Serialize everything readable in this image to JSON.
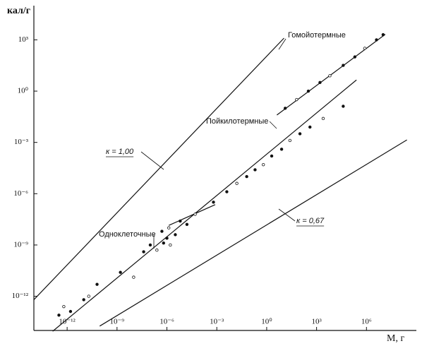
{
  "chart_data": {
    "type": "scatter",
    "y_label": "кал/г",
    "x_label": "М, г",
    "log_x": true,
    "log_y": true,
    "color": "#111111",
    "xlim": [
      1e-14,
      1000000000.0
    ],
    "ylim": [
      1e-14,
      100000.0
    ],
    "xticks": [
      {
        "value": 1e-12,
        "label": "10⁻¹²"
      },
      {
        "value": 1e-09,
        "label": "10⁻⁹"
      },
      {
        "value": 1e-06,
        "label": "10⁻⁶"
      },
      {
        "value": 0.001,
        "label": "10⁻³"
      },
      {
        "value": 1,
        "label": "10⁰"
      },
      {
        "value": 1000.0,
        "label": "10³"
      },
      {
        "value": 1000000.0,
        "label": "10⁶"
      }
    ],
    "yticks": [
      {
        "value": 1000.0,
        "label": "10³"
      },
      {
        "value": 1,
        "label": "10⁰"
      },
      {
        "value": 0.001,
        "label": "10⁻³"
      },
      {
        "value": 1e-06,
        "label": "10⁻⁶"
      },
      {
        "value": 1e-09,
        "label": "10⁻⁹"
      },
      {
        "value": 1e-12,
        "label": "10⁻¹²"
      }
    ],
    "lines": [
      {
        "label": "к = 1,00",
        "x": [
          1e-14,
          11
        ],
        "y": [
          6.3e-13,
          1260
        ]
      },
      {
        "label": "к = 0,67",
        "x": [
          9.1e-11,
          270000000.0
        ],
        "y": [
          1.8e-14,
          0.0014
        ]
      },
      {
        "label": "Пойкилотермные",
        "x": [
          1.35e-13,
          250000.0
        ],
        "y": [
          9e-15,
          4.5
        ]
      },
      {
        "label": "Одноклеточные",
        "x": [
          1.3e-06,
          0.0008
        ],
        "y": [
          1.4e-08,
          2.3e-07
        ]
      },
      {
        "label": "Гомойотермные",
        "x": [
          4.1,
          13500000.0
        ],
        "y": [
          0.04,
          2100
        ]
      }
    ],
    "points": {
      "x": [
        3.2e-13,
        6.3e-13,
        1.6e-12,
        1e-11,
        2e-11,
        6.3e-11,
        1.6e-09,
        1e-08,
        4e-08,
        1e-07,
        2.5e-07,
        6.3e-07,
        1e-06,
        1.6e-06,
        3.2e-06,
        5e-07,
        1.3e-06,
        6.3e-06,
        1.6e-05,
        5e-05,
        0.00063,
        0.004,
        0.016,
        0.063,
        0.2,
        0.63,
        2,
        7.9,
        25,
        100,
        400,
        2500,
        40000.0,
        13,
        63,
        320,
        1600,
        6300,
        40000.0,
        200000.0,
        790000.0,
        4000000.0,
        10000000.0
      ],
      "y": [
        7.9e-14,
        2.5e-13,
        1.3e-13,
        6.3e-13,
        1e-12,
        5e-12,
        2.5e-11,
        1.3e-11,
        4e-10,
        1e-09,
        5e-10,
        1.3e-09,
        2.5e-09,
        1e-09,
        4e-09,
        6.3e-09,
        1e-08,
        2.5e-08,
        1.6e-08,
        6.3e-08,
        3.2e-07,
        1.3e-06,
        4e-06,
        1e-05,
        2.5e-05,
        5e-05,
        0.00016,
        0.0004,
        0.0013,
        0.0032,
        0.0079,
        0.025,
        0.13,
        0.1,
        0.32,
        1,
        3.2,
        7.9,
        32,
        100,
        320,
        1000,
        2000
      ]
    }
  }
}
